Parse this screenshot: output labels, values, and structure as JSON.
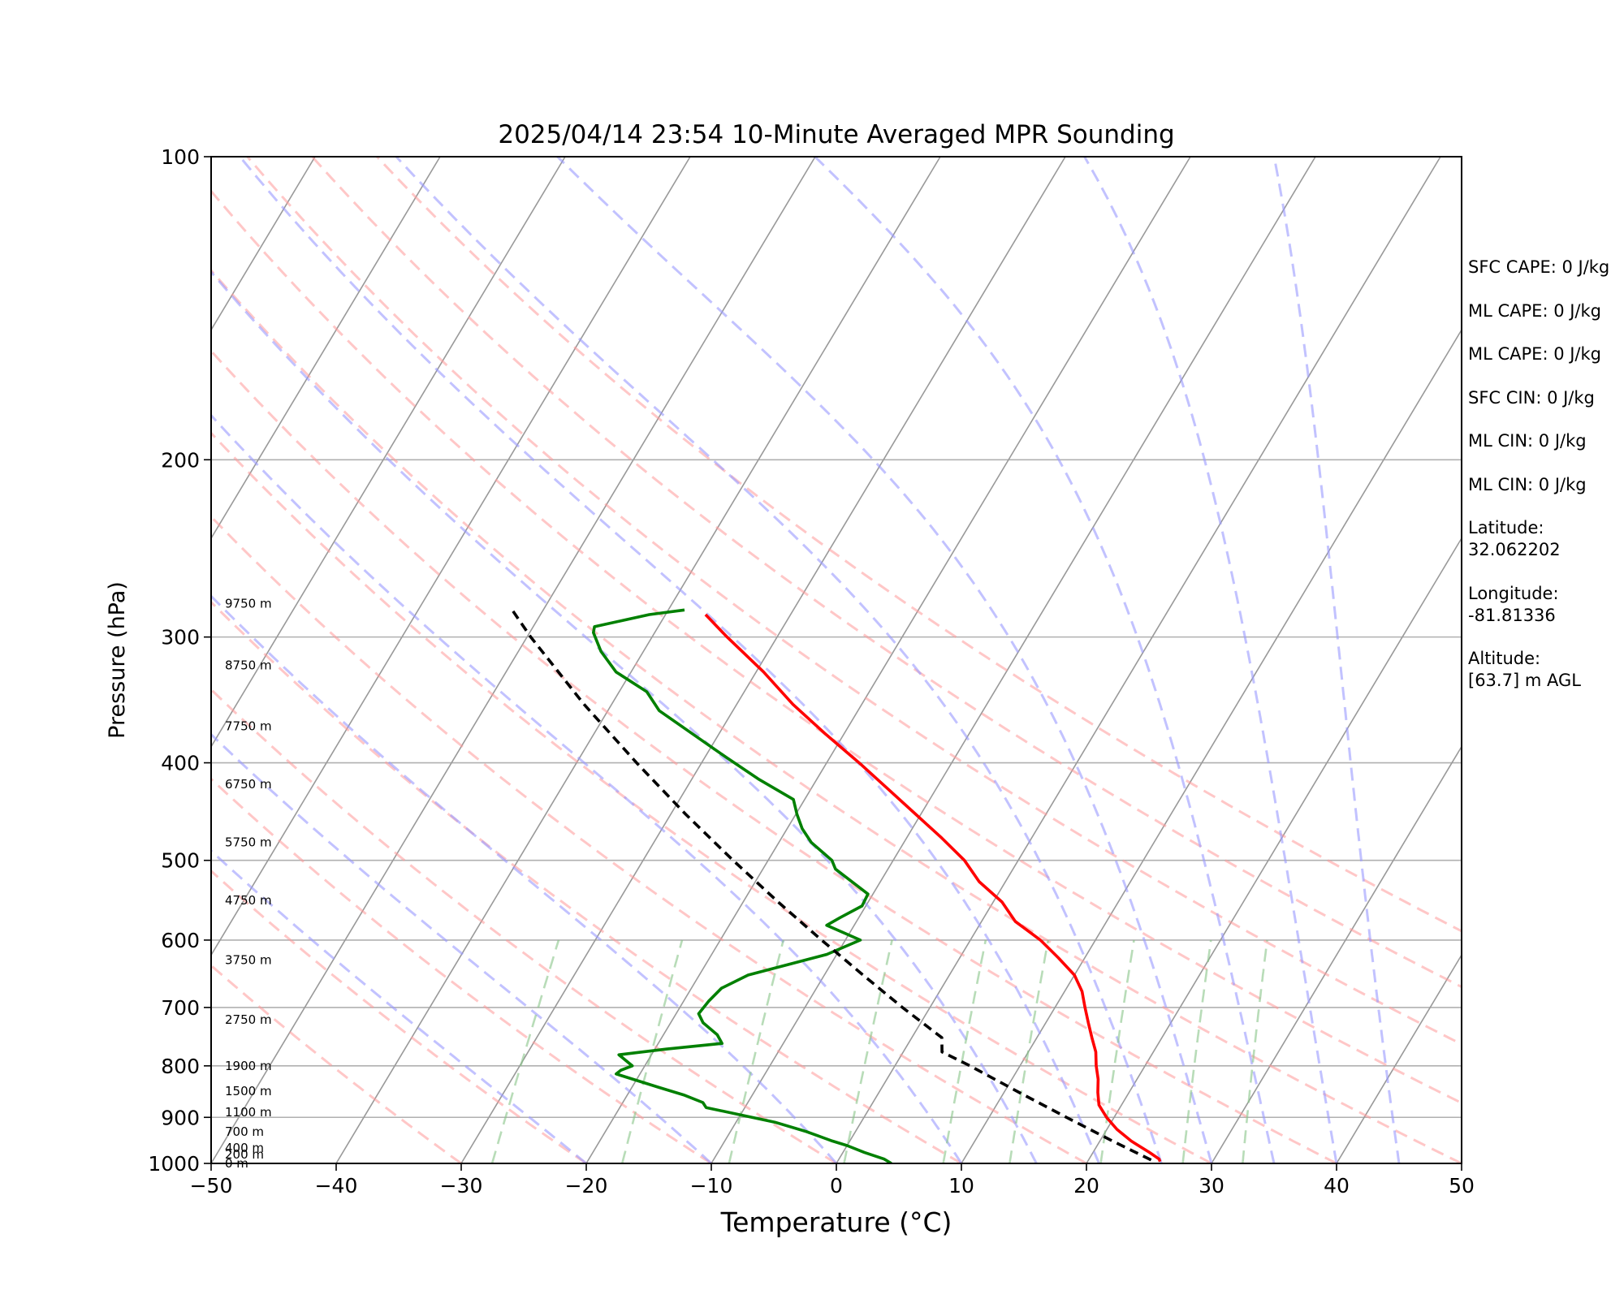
{
  "chart_data": {
    "type": "line",
    "subtype": "skew-t log-p sounding",
    "title": "2025/04/14 23:54 10-Minute Averaged MPR Sounding",
    "xlabel": "Temperature (°C)",
    "ylabel": "Pressure (hPa)",
    "xlim": [
      -50,
      50
    ],
    "ylim": [
      1000,
      100
    ],
    "y_scale": "log",
    "x_ticks": [
      -50,
      -40,
      -30,
      -20,
      -10,
      0,
      10,
      20,
      30,
      40,
      50
    ],
    "x_tick_labels": [
      "−50",
      "−40",
      "−30",
      "−20",
      "−10",
      "0",
      "10",
      "20",
      "30",
      "40",
      "50"
    ],
    "y_ticks": [
      1000,
      900,
      800,
      700,
      600,
      500,
      400,
      300,
      200,
      100
    ],
    "y_tick_labels": [
      "1000",
      "900",
      "800",
      "700",
      "600",
      "500",
      "400",
      "300",
      "200",
      "100"
    ],
    "grid": true,
    "series": [
      {
        "role": "temperature",
        "color": "#ff0000",
        "style": "solid",
        "pressure": [
          996,
          990,
          975,
          950,
          925,
          900,
          875,
          850,
          825,
          800,
          775,
          750,
          725,
          700,
          675,
          650,
          625,
          600,
          575,
          550,
          525,
          500,
          475,
          450,
          425,
          400,
          375,
          350,
          325,
          300,
          285
        ],
        "values": [
          25.8,
          25.6,
          24.5,
          22.5,
          20.8,
          19.4,
          18.2,
          17.5,
          16.9,
          16.1,
          15.4,
          14.4,
          13.4,
          12.4,
          11.4,
          10.0,
          7.9,
          5.6,
          2.7,
          0.7,
          -2.1,
          -4.3,
          -7.2,
          -10.4,
          -13.8,
          -17.4,
          -21.4,
          -25.5,
          -29.4,
          -34.0,
          -36.8
        ]
      },
      {
        "role": "dewpoint",
        "color": "#008000",
        "style": "solid",
        "pressure": [
          1000,
          990,
          975,
          960,
          950,
          930,
          910,
          880,
          870,
          855,
          840,
          815,
          808,
          800,
          780,
          770,
          760,
          745,
          725,
          710,
          690,
          670,
          650,
          620,
          600,
          580,
          570,
          555,
          540,
          510,
          500,
          480,
          465,
          450,
          435,
          415,
          395,
          375,
          355,
          340,
          325,
          310,
          297,
          293,
          285,
          282
        ],
        "values": [
          4.4,
          3.6,
          1.7,
          0.0,
          -1.4,
          -3.9,
          -6.9,
          -13.1,
          -13.6,
          -15.5,
          -17.9,
          -21.9,
          -21.7,
          -21.0,
          -22.6,
          -19.1,
          -14.9,
          -15.7,
          -17.4,
          -18.2,
          -18.0,
          -17.6,
          -16.1,
          -10.8,
          -8.8,
          -12.2,
          -11.5,
          -10.3,
          -10.4,
          -14.2,
          -14.9,
          -17.4,
          -18.8,
          -19.9,
          -20.9,
          -24.7,
          -28.3,
          -32.0,
          -35.9,
          -37.8,
          -41.2,
          -43.4,
          -44.9,
          -45.1,
          -41.3,
          -38.7
        ]
      },
      {
        "role": "parcel",
        "color": "#000000",
        "style": "dashed",
        "pressure": [
          992,
          950,
          900,
          850,
          800,
          775,
          750,
          700,
          650,
          600,
          550,
          500,
          450,
          400,
          350,
          300,
          280
        ],
        "values": [
          25.0,
          21.0,
          16.2,
          11.2,
          6.0,
          3.1,
          2.4,
          -2.2,
          -6.9,
          -11.9,
          -17.2,
          -22.8,
          -28.8,
          -35.2,
          -42.2,
          -49.7,
          -52.8
        ]
      }
    ],
    "height_labels": [
      {
        "label": "0 m",
        "pressure": 1000
      },
      {
        "label": "200 m",
        "pressure": 980
      },
      {
        "label": "400 m",
        "pressure": 965
      },
      {
        "label": "700 m",
        "pressure": 930
      },
      {
        "label": "1100 m",
        "pressure": 890
      },
      {
        "label": "1500 m",
        "pressure": 848
      },
      {
        "label": "1900 m",
        "pressure": 800
      },
      {
        "label": "2750 m",
        "pressure": 720
      },
      {
        "label": "3750 m",
        "pressure": 628
      },
      {
        "label": "4750 m",
        "pressure": 548
      },
      {
        "label": "5750 m",
        "pressure": 480
      },
      {
        "label": "6750 m",
        "pressure": 420
      },
      {
        "label": "7750 m",
        "pressure": 368
      },
      {
        "label": "8750 m",
        "pressure": 320
      },
      {
        "label": "9750 m",
        "pressure": 278
      }
    ],
    "background_lines": {
      "isotherms": {
        "color": "#999999",
        "style": "solid",
        "temperatures": [
          -130,
          -120,
          -110,
          -100,
          -90,
          -80,
          -70,
          -60,
          -50,
          -40,
          -30,
          -20,
          -10,
          0,
          10,
          20,
          30,
          40,
          50
        ]
      },
      "dry_adiabats": {
        "color": "#ff9999",
        "style": "dashed",
        "theta_c": [
          -30,
          -20,
          -10,
          0,
          10,
          20,
          30,
          40,
          50,
          60,
          70,
          80,
          90
        ]
      },
      "moist_adiabats": {
        "color": "#9999ff",
        "style": "dashed",
        "surface_temps_c": [
          -20,
          -10,
          0,
          10,
          16,
          21,
          26,
          30,
          35,
          40,
          45
        ]
      },
      "mixing_ratio": {
        "color": "#88c488",
        "style": "dashed",
        "top_pressure": 600,
        "g_per_kg": [
          0.4,
          1,
          2,
          4,
          7,
          10,
          16,
          24,
          32
        ]
      }
    }
  },
  "info_panel": [
    {
      "id": "sfc_cape",
      "text": "SFC CAPE: 0 J/kg"
    },
    {
      "id": "ml_cape_1",
      "text": "ML CAPE: 0 J/kg"
    },
    {
      "id": "ml_cape_2",
      "text": "ML CAPE: 0 J/kg"
    },
    {
      "id": "sfc_cin",
      "text": "SFC CIN: 0 J/kg"
    },
    {
      "id": "ml_cin_1",
      "text": "ML CIN: 0 J/kg"
    },
    {
      "id": "ml_cin_2",
      "text": "ML CIN: 0 J/kg"
    },
    {
      "id": "latitude",
      "label": "Latitude:",
      "value": "32.062202"
    },
    {
      "id": "longitude",
      "label": "Longitude:",
      "value": "-81.81336"
    },
    {
      "id": "altitude",
      "label": "Altitude:",
      "value": "[63.7] m AGL"
    }
  ]
}
